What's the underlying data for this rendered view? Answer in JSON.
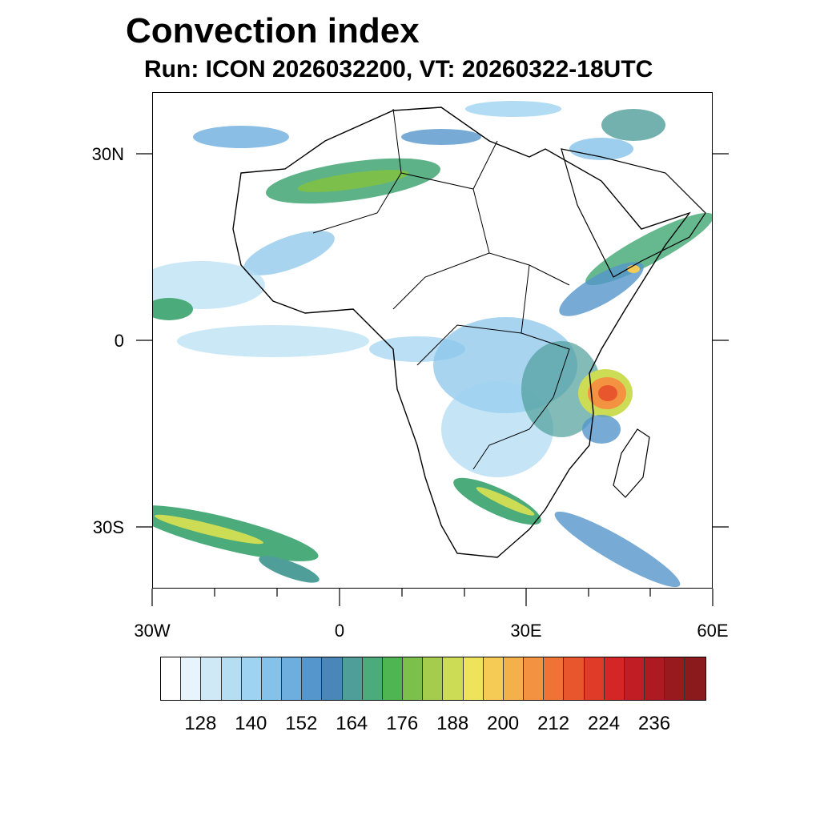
{
  "title": "Convection index",
  "subtitle": "Run: ICON 2026032200,  VT: 20260322-18UTC",
  "map": {
    "lon_range": [
      -30,
      60
    ],
    "lat_range": [
      -40,
      40
    ],
    "lat_ticks": [
      {
        "value": 30,
        "label": "30N"
      },
      {
        "value": 0,
        "label": "0"
      },
      {
        "value": -30,
        "label": "30S"
      }
    ],
    "lon_ticks": [
      {
        "value": -30,
        "label": "30W"
      },
      {
        "value": 0,
        "label": "0"
      },
      {
        "value": 30,
        "label": "30E"
      },
      {
        "value": 60,
        "label": "60E"
      }
    ]
  },
  "colorbar": {
    "colors": [
      "#ffffff",
      "#e8f4fb",
      "#cfe9f7",
      "#b5def3",
      "#9ed3f1",
      "#85c2ea",
      "#6eaede",
      "#5596cc",
      "#4a87b8",
      "#4f9e9a",
      "#4bab7a",
      "#4fb552",
      "#7cc04b",
      "#a6cc4d",
      "#cddc55",
      "#efe35b",
      "#f6cb55",
      "#f4b04a",
      "#f39240",
      "#ee7335",
      "#e8562d",
      "#e03a28",
      "#d42527",
      "#c01d24",
      "#ad1a22",
      "#981a1e",
      "#8a1a1c"
    ],
    "labels": [
      "128",
      "140",
      "152",
      "164",
      "176",
      "188",
      "200",
      "212",
      "224",
      "236"
    ]
  },
  "features": [
    {
      "name": "sahara-band",
      "color": "#4bab7a"
    },
    {
      "name": "horn-band",
      "color": "#5596cc"
    },
    {
      "name": "east-africa-hotspot",
      "color": "#e8562d"
    },
    {
      "name": "south-atlantic-band",
      "color": "#cddc55"
    }
  ]
}
